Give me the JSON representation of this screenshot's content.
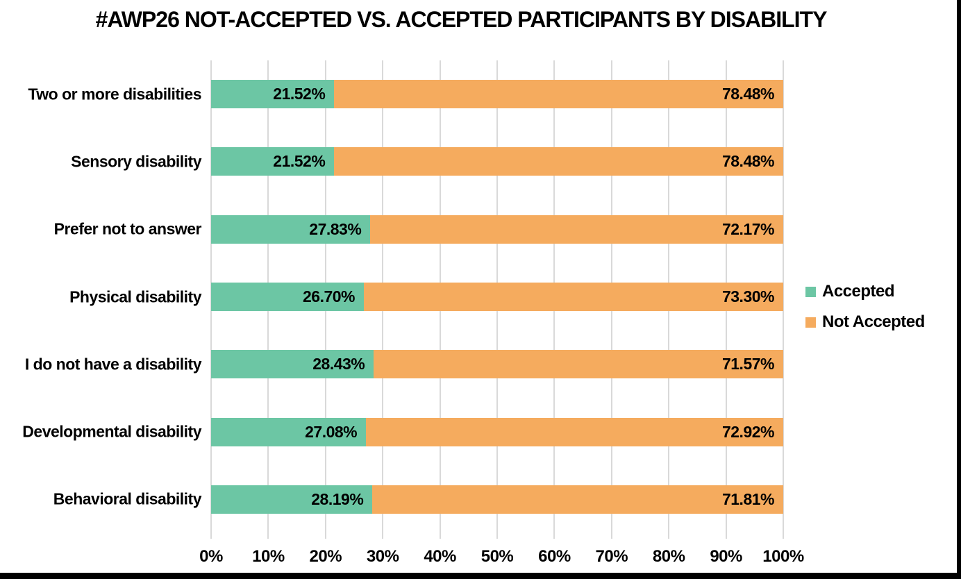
{
  "title": "#AWP26 NOT-ACCEPTED VS. ACCEPTED PARTICIPANTS BY DISABILITY",
  "colors": {
    "accepted": "#6CC6A4",
    "not_accepted": "#F5AB5E",
    "gridline": "#D9D9D9",
    "text": "#000000",
    "frame": "#000000",
    "background": "#FFFFFF"
  },
  "legend": [
    {
      "label": "Accepted",
      "color_key": "accepted"
    },
    {
      "label": "Not Accepted",
      "color_key": "not_accepted"
    }
  ],
  "chart_data": {
    "type": "bar",
    "orientation": "horizontal",
    "stacked": true,
    "grid": true,
    "legend_position": "right",
    "title": "#AWP26 NOT-ACCEPTED VS. ACCEPTED PARTICIPANTS BY DISABILITY",
    "categories": [
      "Two or more disabilities",
      "Sensory disability",
      "Prefer not to answer",
      "Physical disability",
      "I do not have a disability",
      "Developmental disability",
      "Behavioral disability"
    ],
    "series": [
      {
        "name": "Accepted",
        "values": [
          21.52,
          21.52,
          27.83,
          26.7,
          28.43,
          27.08,
          28.19
        ],
        "labels": [
          "21.52%",
          "21.52%",
          "27.83%",
          "26.70%",
          "28.43%",
          "27.08%",
          "28.19%"
        ]
      },
      {
        "name": "Not Accepted",
        "values": [
          78.48,
          78.48,
          72.17,
          73.3,
          71.57,
          72.92,
          71.81
        ],
        "labels": [
          "78.48%",
          "78.48%",
          "72.17%",
          "73.30%",
          "71.57%",
          "72.92%",
          "71.81%"
        ]
      }
    ],
    "x_axis": {
      "min": 0,
      "max": 100,
      "ticks": [
        "0%",
        "10%",
        "20%",
        "30%",
        "40%",
        "50%",
        "60%",
        "70%",
        "80%",
        "90%",
        "100%"
      ]
    }
  }
}
